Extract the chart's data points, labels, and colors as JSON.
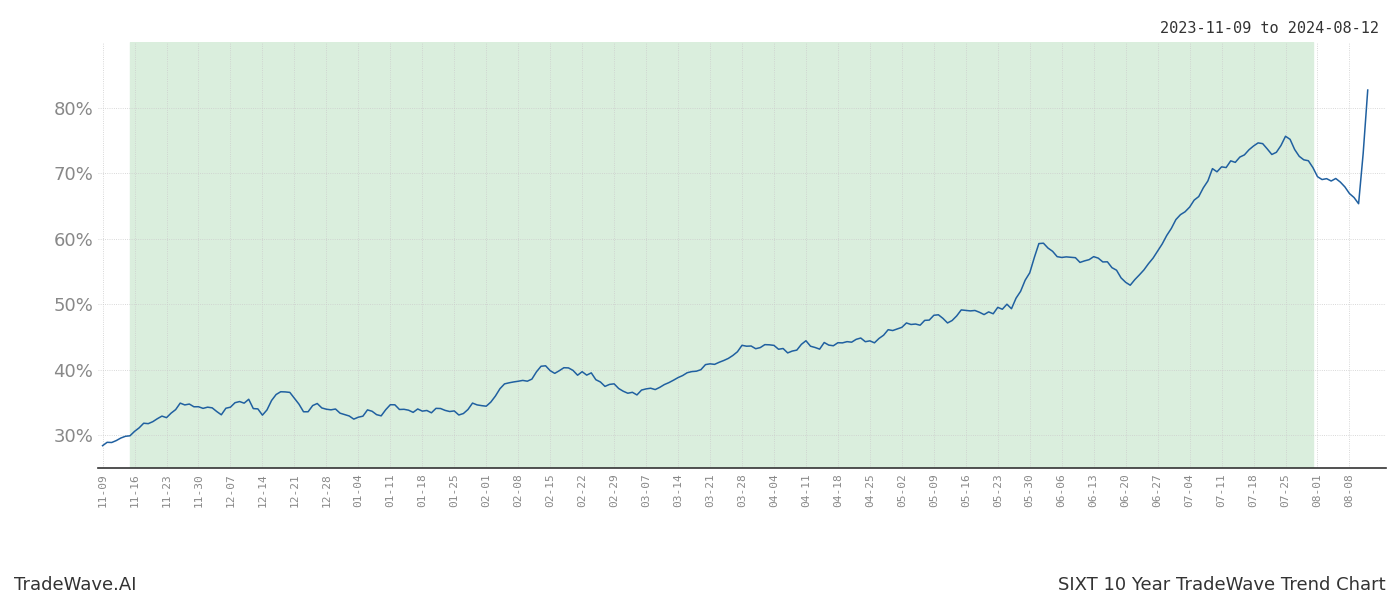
{
  "date_start": "2023-11-09",
  "date_end": "2024-08-12",
  "header_text": "2023-11-09 to 2024-08-12",
  "footer_left": "TradeWave.AI",
  "footer_right": "SIXT 10 Year TradeWave Trend Chart",
  "y_min": 25,
  "y_max": 90,
  "yticks": [
    30,
    40,
    50,
    60,
    70,
    80
  ],
  "line_color": "#2060a0",
  "fill_color": "#daeedd",
  "fill_alpha": 1.0,
  "background_color": "#ffffff",
  "grid_color": "#cccccc",
  "text_color": "#888888",
  "shade_start": "2023-11-15",
  "shade_end": "2024-07-31",
  "waypoints": [
    [
      "2023-11-09",
      28.0
    ],
    [
      "2023-11-10",
      28.5
    ],
    [
      "2023-11-15",
      30.5
    ],
    [
      "2023-11-21",
      32.5
    ],
    [
      "2023-11-27",
      35.0
    ],
    [
      "2023-12-01",
      33.5
    ],
    [
      "2023-12-05",
      34.5
    ],
    [
      "2023-12-11",
      35.5
    ],
    [
      "2023-12-15",
      34.0
    ],
    [
      "2023-12-19",
      36.5
    ],
    [
      "2023-12-27",
      33.5
    ],
    [
      "2024-01-02",
      33.0
    ],
    [
      "2024-01-08",
      33.5
    ],
    [
      "2024-01-14",
      35.0
    ],
    [
      "2024-01-20",
      33.0
    ],
    [
      "2024-01-26",
      33.5
    ],
    [
      "2024-02-01",
      35.0
    ],
    [
      "2024-02-07",
      37.5
    ],
    [
      "2024-02-13",
      39.5
    ],
    [
      "2024-02-19",
      40.5
    ],
    [
      "2024-02-25",
      38.0
    ],
    [
      "2024-03-01",
      37.0
    ],
    [
      "2024-03-05",
      36.5
    ],
    [
      "2024-03-11",
      37.5
    ],
    [
      "2024-03-15",
      38.5
    ],
    [
      "2024-03-20",
      41.0
    ],
    [
      "2024-03-27",
      43.5
    ],
    [
      "2024-04-02",
      44.5
    ],
    [
      "2024-04-08",
      43.5
    ],
    [
      "2024-04-14",
      43.0
    ],
    [
      "2024-04-20",
      44.0
    ],
    [
      "2024-04-26",
      45.0
    ],
    [
      "2024-05-02",
      46.5
    ],
    [
      "2024-05-08",
      47.5
    ],
    [
      "2024-05-14",
      48.5
    ],
    [
      "2024-05-20",
      49.0
    ],
    [
      "2024-05-26",
      49.5
    ],
    [
      "2024-06-01",
      59.0
    ],
    [
      "2024-06-04",
      58.0
    ],
    [
      "2024-06-07",
      57.5
    ],
    [
      "2024-06-10",
      56.5
    ],
    [
      "2024-06-13",
      57.5
    ],
    [
      "2024-06-17",
      55.0
    ],
    [
      "2024-06-19",
      54.5
    ],
    [
      "2024-06-21",
      53.0
    ],
    [
      "2024-06-25",
      56.0
    ],
    [
      "2024-07-01",
      62.0
    ],
    [
      "2024-07-05",
      66.0
    ],
    [
      "2024-07-09",
      70.0
    ],
    [
      "2024-07-12",
      71.0
    ],
    [
      "2024-07-15",
      73.0
    ],
    [
      "2024-07-19",
      74.5
    ],
    [
      "2024-07-22",
      73.0
    ],
    [
      "2024-07-25",
      75.0
    ],
    [
      "2024-07-29",
      72.0
    ],
    [
      "2024-07-31",
      70.5
    ],
    [
      "2024-08-01",
      69.5
    ],
    [
      "2024-08-05",
      68.5
    ],
    [
      "2024-08-07",
      67.5
    ],
    [
      "2024-08-09",
      66.0
    ],
    [
      "2024-08-10",
      65.0
    ],
    [
      "2024-08-11",
      73.0
    ],
    [
      "2024-08-12",
      83.0
    ]
  ]
}
